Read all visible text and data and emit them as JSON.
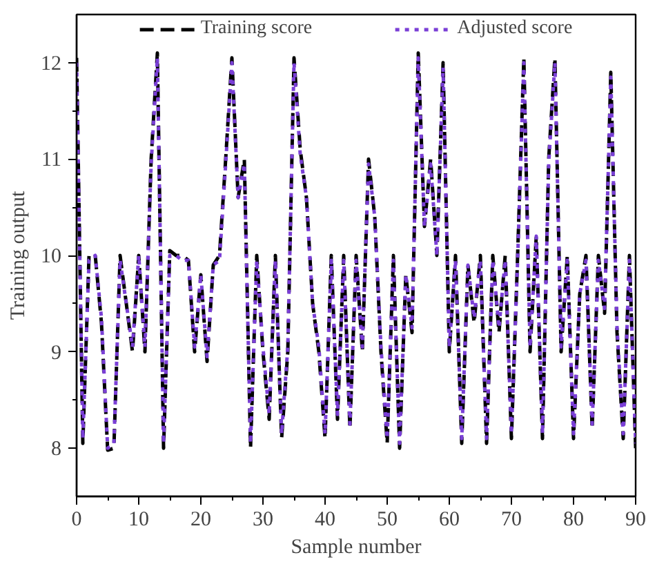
{
  "chart_data": {
    "type": "line",
    "xlabel": "Sample number",
    "ylabel": "Training output",
    "x": [
      0,
      1,
      2,
      3,
      4,
      5,
      6,
      7,
      8,
      9,
      10,
      11,
      12,
      13,
      14,
      15,
      16,
      17,
      18,
      19,
      20,
      21,
      22,
      23,
      24,
      25,
      26,
      27,
      28,
      29,
      30,
      31,
      32,
      33,
      34,
      35,
      36,
      37,
      38,
      39,
      40,
      41,
      42,
      43,
      44,
      45,
      46,
      47,
      48,
      49,
      50,
      51,
      52,
      53,
      54,
      55,
      56,
      57,
      58,
      59,
      60,
      61,
      62,
      63,
      64,
      65,
      66,
      67,
      68,
      69,
      70,
      71,
      72,
      73,
      74,
      75,
      76,
      77,
      78,
      79,
      80,
      81,
      82,
      83,
      84,
      85,
      86,
      87,
      88,
      89,
      90
    ],
    "series": [
      {
        "name": "Training score",
        "color": "#000000",
        "line_style": "dashed",
        "values": [
          12.05,
          8.05,
          10.0,
          10.0,
          9.3,
          7.98,
          8.0,
          10.0,
          9.5,
          9.0,
          10.0,
          9.0,
          11.0,
          12.1,
          8.0,
          10.05,
          10.0,
          10.0,
          9.95,
          9.0,
          9.8,
          8.9,
          9.9,
          10.0,
          11.0,
          12.05,
          10.6,
          11.0,
          8.0,
          10.0,
          9.0,
          8.3,
          10.0,
          8.1,
          9.0,
          12.05,
          11.1,
          10.6,
          9.5,
          9.0,
          8.1,
          10.0,
          8.3,
          10.0,
          8.2,
          10.0,
          9.0,
          11.0,
          10.4,
          9.0,
          8.05,
          10.0,
          8.0,
          9.8,
          9.2,
          12.1,
          10.3,
          11.0,
          10.0,
          12.0,
          9.0,
          10.0,
          8.05,
          9.9,
          9.3,
          10.0,
          8.05,
          10.0,
          9.2,
          10.0,
          8.1,
          10.0,
          12.05,
          9.0,
          10.2,
          8.1,
          11.0,
          12.05,
          9.0,
          10.0,
          8.1,
          9.6,
          10.0,
          8.2,
          10.0,
          9.4,
          11.9,
          9.2,
          8.1,
          10.0,
          8.0
        ]
      },
      {
        "name": "Adjusted score",
        "color": "#7a3fd6",
        "line_style": "dotted",
        "values": [
          12.0,
          8.1,
          9.95,
          10.0,
          9.35,
          8.0,
          8.05,
          9.95,
          9.5,
          9.05,
          10.0,
          9.05,
          10.95,
          12.05,
          8.05,
          10.0,
          10.0,
          9.95,
          9.95,
          9.05,
          9.8,
          8.95,
          9.9,
          9.95,
          10.95,
          12.0,
          10.6,
          10.95,
          8.05,
          9.95,
          9.05,
          8.35,
          9.95,
          8.15,
          9.05,
          12.0,
          11.05,
          10.6,
          9.5,
          9.05,
          8.15,
          9.95,
          8.35,
          9.95,
          8.25,
          9.95,
          9.05,
          10.95,
          10.4,
          9.05,
          8.1,
          9.95,
          8.05,
          9.8,
          9.25,
          12.05,
          10.3,
          10.95,
          10.0,
          11.95,
          9.05,
          9.95,
          8.1,
          9.9,
          9.35,
          9.95,
          8.1,
          9.95,
          9.25,
          9.95,
          8.15,
          9.95,
          12.0,
          9.05,
          10.2,
          8.15,
          10.95,
          12.0,
          9.05,
          9.95,
          8.15,
          9.6,
          9.95,
          8.25,
          9.95,
          9.45,
          11.85,
          9.25,
          8.15,
          9.95,
          8.05
        ]
      }
    ],
    "xlim": [
      0,
      90
    ],
    "xticks": [
      0,
      10,
      20,
      30,
      40,
      50,
      60,
      70,
      80,
      90
    ],
    "ylim": [
      7.5,
      12.5
    ],
    "yticks": [
      8,
      9,
      10,
      11,
      12
    ],
    "grid": false,
    "legend": "top",
    "marker": "none"
  }
}
